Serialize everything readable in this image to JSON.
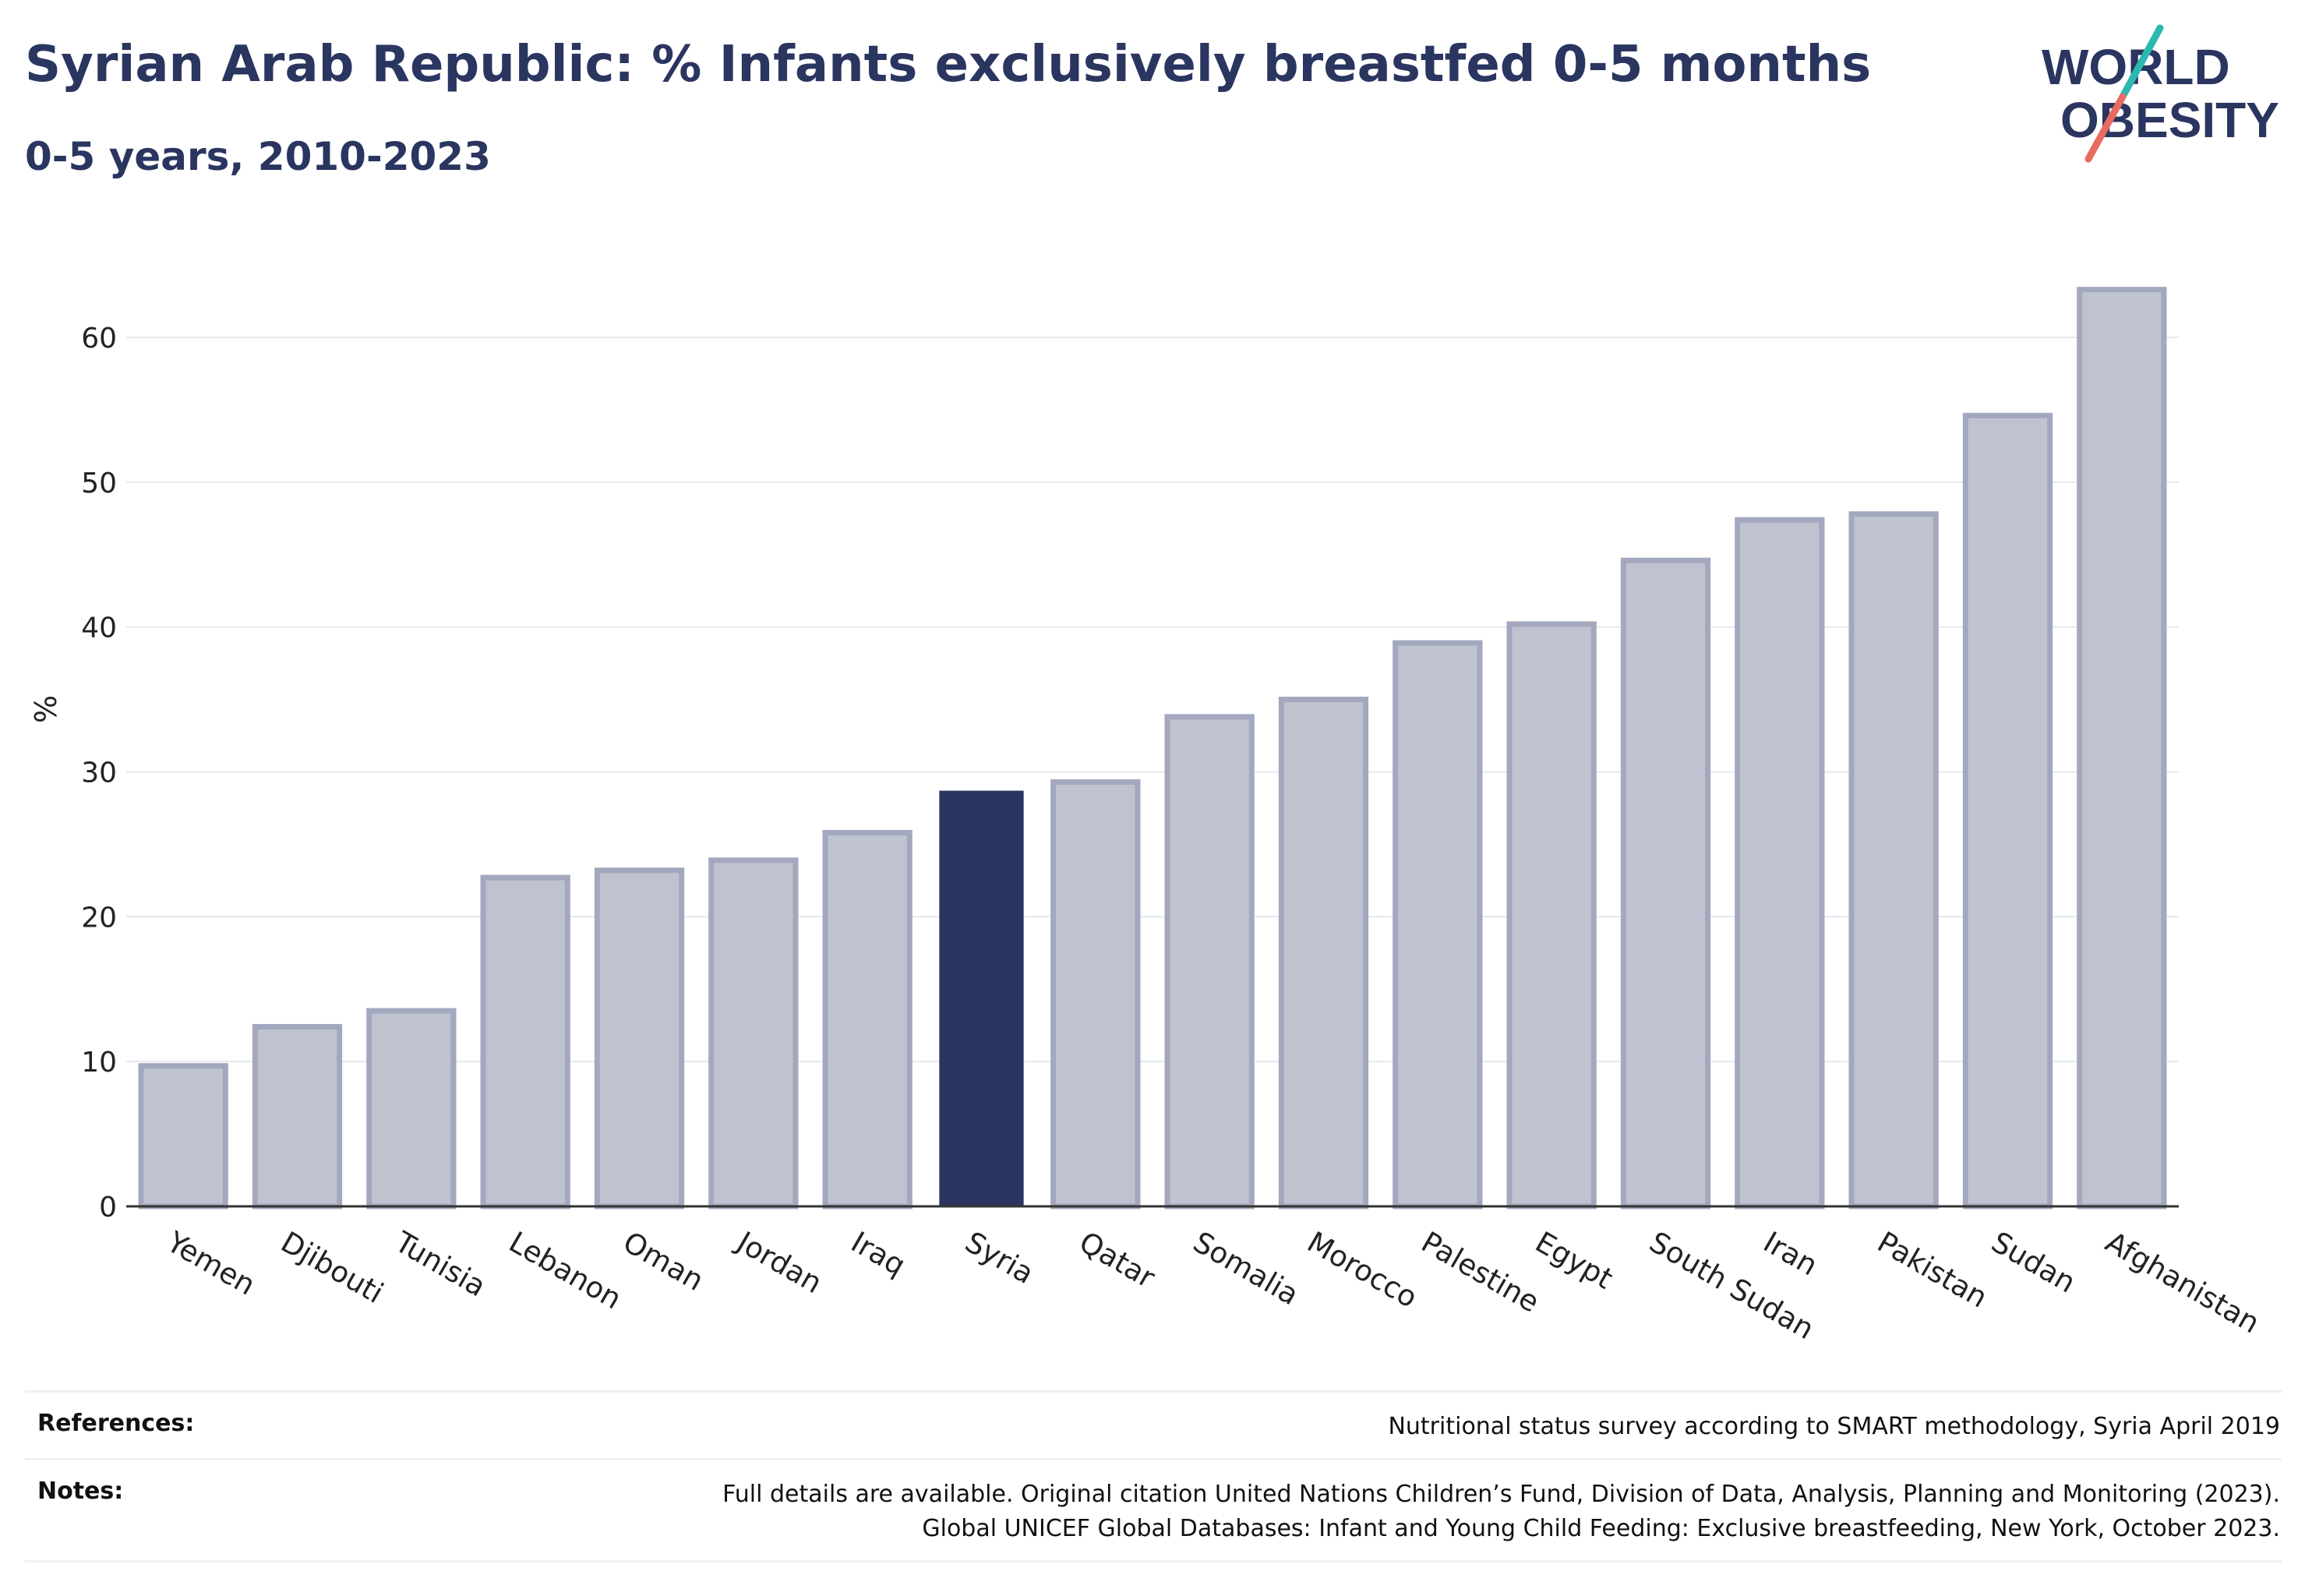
{
  "header": {
    "title": "Syrian Arab Republic: % Infants exclusively breastfed 0-5 months",
    "subtitle": "0-5 years, 2010-2023"
  },
  "logo": {
    "line1": "WORLD",
    "line2": "OBESITY"
  },
  "chart_data": {
    "type": "bar",
    "title": "Syrian Arab Republic: % Infants exclusively breastfed 0-5 months",
    "subtitle": "0-5 years, 2010-2023",
    "xlabel": "",
    "ylabel": "%",
    "ylim": [
      0,
      65
    ],
    "yticks": [
      0,
      10,
      20,
      30,
      40,
      50,
      60
    ],
    "grid": true,
    "legend": "none",
    "categories": [
      "Yemen",
      "Djibouti",
      "Tunisia",
      "Lebanon",
      "Oman",
      "Jordan",
      "Iraq",
      "Syria",
      "Qatar",
      "Somalia",
      "Morocco",
      "Palestine",
      "Egypt",
      "South Sudan",
      "Iran",
      "Pakistan",
      "Sudan",
      "Afghanistan"
    ],
    "values": [
      9.7,
      12.4,
      13.5,
      22.7,
      23.2,
      23.9,
      25.8,
      28.7,
      29.3,
      33.8,
      35.0,
      38.9,
      40.2,
      44.6,
      47.4,
      47.8,
      54.6,
      63.3
    ],
    "highlight": "Syria",
    "colors": {
      "highlight": "#2a3560",
      "bar_fill": "#bfc3d0",
      "bar_border": "#a3a8bf"
    }
  },
  "footer": {
    "references_label": "References:",
    "references_text": "Nutritional status survey according to SMART methodology, Syria April 2019",
    "notes_label": "Notes:",
    "notes_line1": "Full details are available. Original citation United Nations Children’s Fund, Division of Data, Analysis, Planning and Monitoring (2023).",
    "notes_line2": "Global UNICEF Global Databases: Infant and Young Child Feeding: Exclusive breastfeeding, New York, October 2023."
  }
}
